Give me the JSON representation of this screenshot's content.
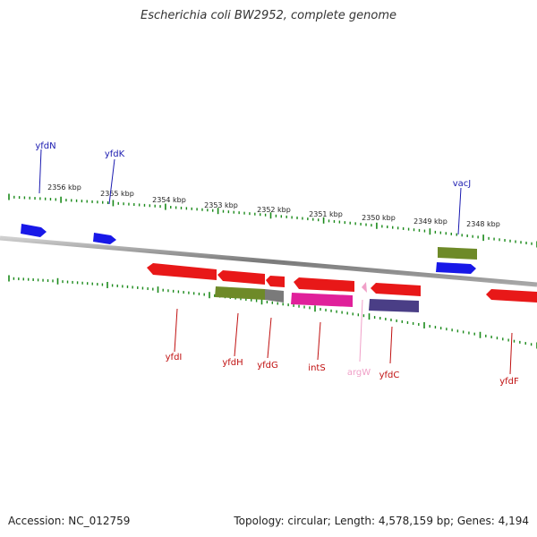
{
  "title": "Escherichia coli BW2952, complete genome",
  "footer": {
    "accession": "Accession: NC_012759",
    "topology": "Topology: circular; Length: 4,578,159 bp; Genes: 4,194"
  },
  "colors": {
    "forward_gene": "#1818e8",
    "reverse_gene": "#e81818",
    "trna": "#f0a0c8",
    "backbone": "#7a7a7a",
    "ruler_tick": "#1a8a1a",
    "kbp_label": "#222222",
    "forward_label": "#1a1ab0",
    "reverse_label": "#c01010",
    "cds_olive": "#6e8a28",
    "cds_gray": "#7a7a7a",
    "cds_magenta": "#e0209a",
    "cds_slate": "#4a3e86"
  },
  "kbp_ticks": [
    "2356 kbp",
    "2355 kbp",
    "2354 kbp",
    "2353 kbp",
    "2352 kbp",
    "2351 kbp",
    "2350 kbp",
    "2349 kbp",
    "2348 kbp"
  ],
  "genes": [
    {
      "label": "yfdN",
      "strand": "forward",
      "type": "gene"
    },
    {
      "label": "yfdK",
      "strand": "forward",
      "type": "gene"
    },
    {
      "label": "vacJ",
      "strand": "forward",
      "type": "gene"
    },
    {
      "label": "yfdI",
      "strand": "reverse",
      "type": "gene"
    },
    {
      "label": "yfdH",
      "strand": "reverse",
      "type": "gene"
    },
    {
      "label": "yfdG",
      "strand": "reverse",
      "type": "gene"
    },
    {
      "label": "intS",
      "strand": "reverse",
      "type": "gene"
    },
    {
      "label": "argW",
      "strand": "reverse",
      "type": "tRNA"
    },
    {
      "label": "yfdC",
      "strand": "reverse",
      "type": "gene"
    },
    {
      "label": "yfdF",
      "strand": "reverse",
      "type": "gene"
    }
  ]
}
